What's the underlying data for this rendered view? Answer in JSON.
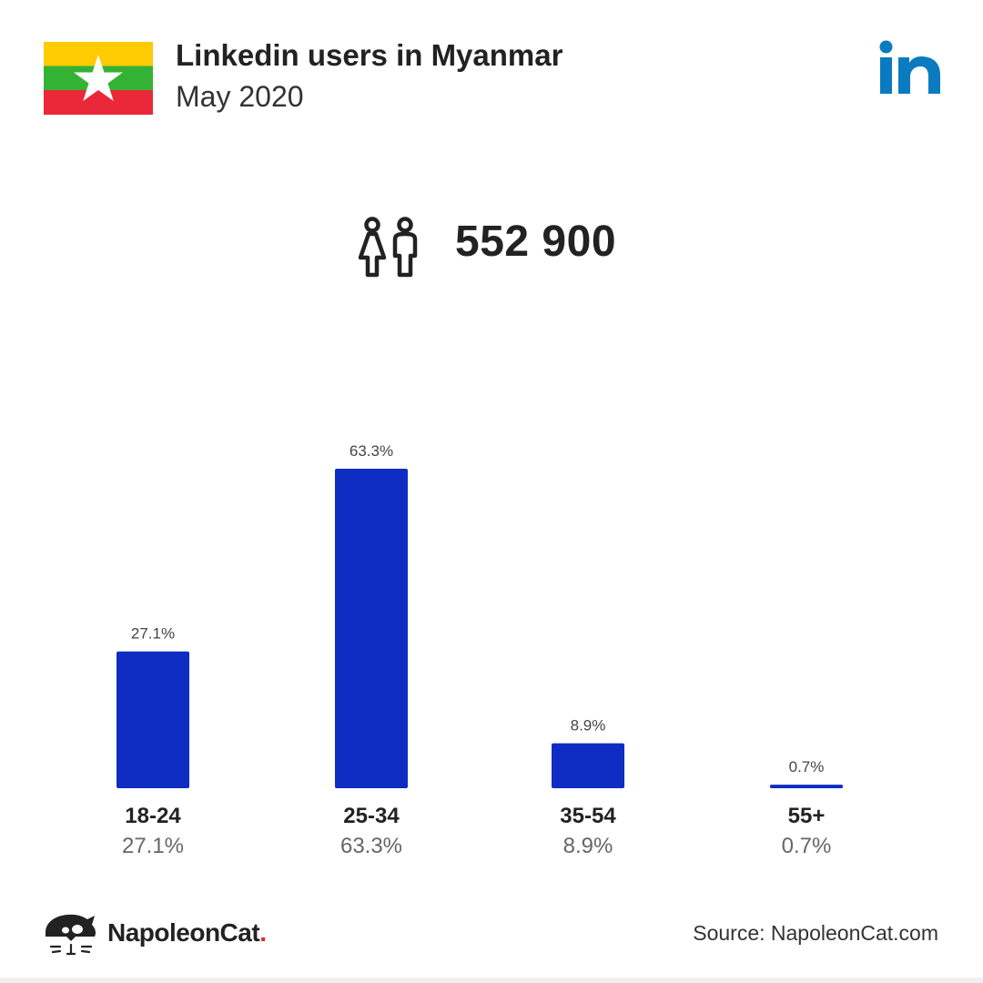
{
  "header": {
    "title": "Linkedin users in Myanmar",
    "subtitle": "May 2020"
  },
  "summary": {
    "total_users": "552 900",
    "icon": "people-icon"
  },
  "flag": {
    "country": "Myanmar",
    "colors": [
      "#fecb00",
      "#34b233",
      "#ea2839"
    ],
    "star_color": "#ffffff"
  },
  "brand": {
    "linkedin_color": "#0a7bc1",
    "bar_color": "#0f2cc3"
  },
  "chart_data": {
    "type": "bar",
    "title": "",
    "xlabel": "",
    "ylabel": "",
    "categories": [
      "18-24",
      "25-34",
      "35-54",
      "55+"
    ],
    "values": [
      27.1,
      63.3,
      8.9,
      0.7
    ],
    "value_labels": [
      "27.1%",
      "63.3%",
      "8.9%",
      "0.7%"
    ],
    "unit": "%",
    "grid": false,
    "legend": "none"
  },
  "footer": {
    "brand_name": "NapoleonCat",
    "brand_dot": ".",
    "source": "Source: NapoleonCat.com"
  }
}
